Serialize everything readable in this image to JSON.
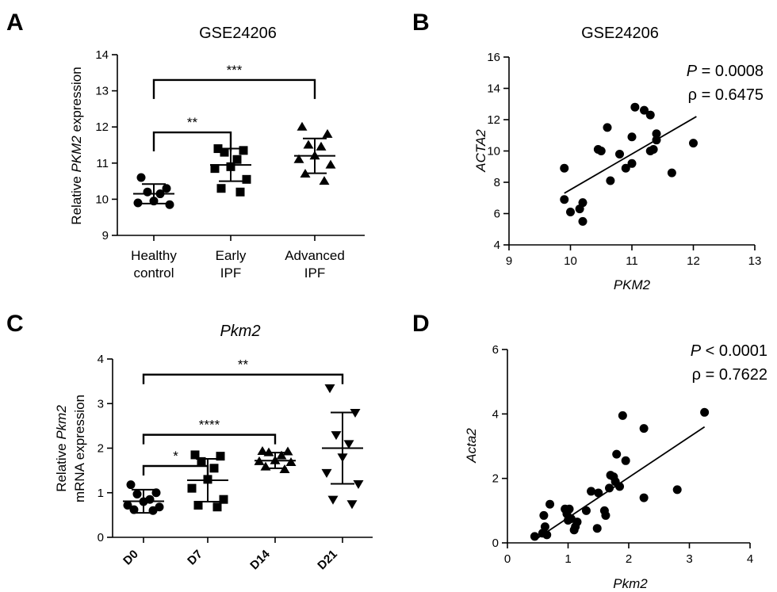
{
  "panels": {
    "A": {
      "label": "A",
      "title": "GSE24206",
      "ylabel_pre": "Relative ",
      "ylabel_gene": "PKM2",
      "ylabel_post": " expression",
      "yticks": [
        9,
        10,
        11,
        12,
        13,
        14
      ],
      "ylim": [
        9,
        14
      ],
      "groups": [
        {
          "lines": [
            "Healthy",
            "control"
          ],
          "marker": "circle",
          "values": [
            10.6,
            10.3,
            10.2,
            10.15,
            9.95,
            9.9,
            9.85
          ],
          "mean": 10.15,
          "sd_low": 9.88,
          "sd_high": 10.42
        },
        {
          "lines": [
            "Early",
            "IPF"
          ],
          "marker": "square",
          "values": [
            11.4,
            11.35,
            11.3,
            11.1,
            10.9,
            10.85,
            10.55,
            10.3,
            10.2
          ],
          "mean": 10.95,
          "sd_low": 10.5,
          "sd_high": 11.4
        },
        {
          "lines": [
            "Advanced",
            "IPF"
          ],
          "marker": "triangle",
          "values": [
            12.0,
            11.8,
            11.5,
            11.45,
            11.2,
            11.1,
            10.95,
            10.7,
            10.5
          ],
          "mean": 11.2,
          "sd_low": 10.72,
          "sd_high": 11.68
        }
      ],
      "brackets": [
        {
          "from": 0,
          "to": 1,
          "y": 11.85,
          "label": "**"
        },
        {
          "from": 0,
          "to": 2,
          "y": 13.3,
          "label": "***"
        }
      ]
    },
    "B": {
      "label": "B",
      "title": "GSE24206",
      "xlabel": "PKM2",
      "ylabel": "ACTA2",
      "xticks": [
        9,
        10,
        11,
        12,
        13
      ],
      "yticks": [
        4,
        6,
        8,
        10,
        12,
        14,
        16
      ],
      "xlim": [
        9,
        13
      ],
      "ylim": [
        4,
        16
      ],
      "p_sym": "P",
      "p_text": " = 0.0008",
      "rho_text": "ρ = 0.6475",
      "points": [
        [
          9.9,
          8.9
        ],
        [
          9.9,
          6.9
        ],
        [
          10.0,
          6.1
        ],
        [
          10.15,
          6.3
        ],
        [
          10.2,
          6.7
        ],
        [
          10.2,
          5.5
        ],
        [
          10.45,
          10.1
        ],
        [
          10.5,
          10.0
        ],
        [
          10.6,
          11.5
        ],
        [
          10.65,
          8.1
        ],
        [
          10.8,
          9.8
        ],
        [
          10.9,
          8.9
        ],
        [
          11.0,
          9.2
        ],
        [
          11.0,
          10.9
        ],
        [
          11.05,
          12.8
        ],
        [
          11.2,
          12.6
        ],
        [
          11.3,
          10.0
        ],
        [
          11.3,
          12.3
        ],
        [
          11.35,
          10.1
        ],
        [
          11.4,
          10.7
        ],
        [
          11.4,
          11.1
        ],
        [
          11.65,
          8.6
        ],
        [
          12.0,
          10.5
        ]
      ],
      "fit": [
        [
          9.9,
          7.3
        ],
        [
          12.05,
          12.2
        ]
      ]
    },
    "C": {
      "label": "C",
      "title": "Pkm2",
      "ylabel_l1_pre": "Relative  ",
      "ylabel_l1_gene": "Pkm2",
      "ylabel_l2": "mRNA expression",
      "yticks": [
        0,
        1,
        2,
        3,
        4
      ],
      "ylim": [
        0,
        4
      ],
      "groups": [
        {
          "name": "D0",
          "marker": "circle",
          "values": [
            1.18,
            1.0,
            0.97,
            0.85,
            0.8,
            0.72,
            0.68,
            0.62,
            0.6
          ],
          "mean": 0.81,
          "sd_low": 0.55,
          "sd_high": 1.07
        },
        {
          "name": "D7",
          "marker": "square",
          "values": [
            1.85,
            1.82,
            1.7,
            1.55,
            1.3,
            1.1,
            0.85,
            0.72,
            0.68
          ],
          "mean": 1.28,
          "sd_low": 0.8,
          "sd_high": 1.76
        },
        {
          "name": "D14",
          "marker": "triangle",
          "values": [
            1.93,
            1.92,
            1.9,
            1.83,
            1.72,
            1.7,
            1.68,
            1.58,
            1.52
          ],
          "mean": 1.72,
          "sd_low": 1.55,
          "sd_high": 1.9
        },
        {
          "name": "D21",
          "marker": "invtriangle",
          "values": [
            3.35,
            2.8,
            2.3,
            2.1,
            1.8,
            1.45,
            1.2,
            0.85,
            0.75
          ],
          "mean": 2.0,
          "sd_low": 1.2,
          "sd_high": 2.8
        }
      ],
      "brackets": [
        {
          "from": 0,
          "to": 1,
          "y": 1.6,
          "label": "*"
        },
        {
          "from": 0,
          "to": 2,
          "y": 2.3,
          "label": "****"
        },
        {
          "from": 0,
          "to": 3,
          "y": 3.65,
          "label": "**"
        }
      ]
    },
    "D": {
      "label": "D",
      "xlabel": "Pkm2",
      "ylabel": "Acta2",
      "xticks": [
        0,
        1,
        2,
        3,
        4
      ],
      "yticks": [
        0,
        2,
        4,
        6
      ],
      "xlim": [
        0,
        4
      ],
      "ylim": [
        0,
        6
      ],
      "p_sym": "P",
      "p_text": " < 0.0001",
      "rho_text": "ρ = 0.7622",
      "points": [
        [
          0.45,
          0.2
        ],
        [
          0.58,
          0.3
        ],
        [
          0.6,
          0.85
        ],
        [
          0.62,
          0.5
        ],
        [
          0.65,
          0.25
        ],
        [
          0.7,
          1.2
        ],
        [
          0.95,
          1.05
        ],
        [
          0.98,
          0.9
        ],
        [
          1.0,
          0.7
        ],
        [
          1.02,
          1.05
        ],
        [
          1.05,
          0.75
        ],
        [
          1.1,
          0.4
        ],
        [
          1.12,
          0.5
        ],
        [
          1.15,
          0.65
        ],
        [
          1.3,
          1.0
        ],
        [
          1.38,
          1.6
        ],
        [
          1.48,
          0.45
        ],
        [
          1.5,
          1.55
        ],
        [
          1.6,
          1.0
        ],
        [
          1.62,
          0.85
        ],
        [
          1.68,
          1.7
        ],
        [
          1.7,
          2.1
        ],
        [
          1.75,
          2.05
        ],
        [
          1.78,
          1.9
        ],
        [
          1.8,
          2.75
        ],
        [
          1.85,
          1.75
        ],
        [
          1.9,
          3.95
        ],
        [
          1.95,
          2.55
        ],
        [
          2.25,
          3.55
        ],
        [
          2.25,
          1.4
        ],
        [
          2.8,
          1.65
        ],
        [
          3.25,
          4.05
        ]
      ],
      "fit": [
        [
          0.5,
          0.15
        ],
        [
          3.25,
          3.6
        ]
      ]
    }
  }
}
